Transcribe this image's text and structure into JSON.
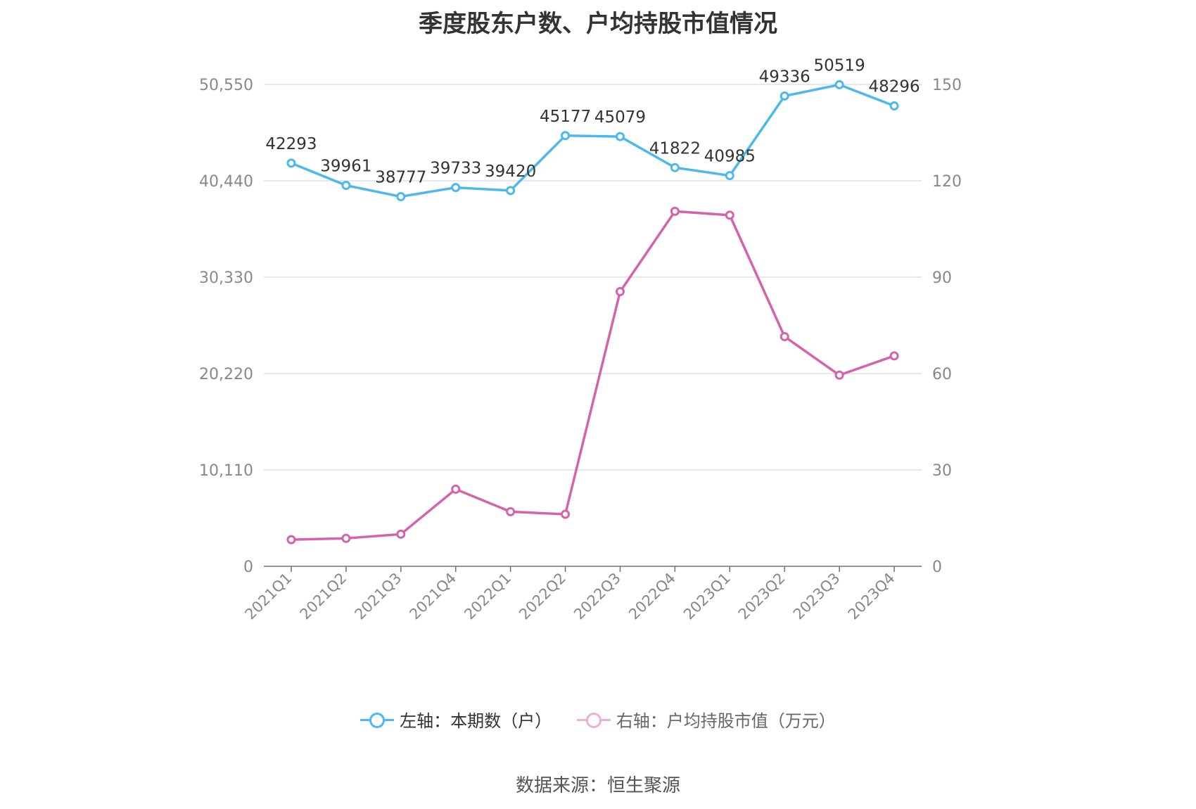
{
  "chart_data": {
    "type": "line",
    "title": "季度股东户数、户均持股市值情况",
    "categories": [
      "2021Q1",
      "2021Q2",
      "2021Q3",
      "2021Q4",
      "2022Q1",
      "2022Q2",
      "2022Q3",
      "2022Q4",
      "2023Q1",
      "2023Q2",
      "2023Q3",
      "2023Q4"
    ],
    "series": [
      {
        "name": "左轴：本期数（户）",
        "axis": "left",
        "color": "#4cb8ee",
        "values": [
          42293,
          39961,
          38777,
          39733,
          39420,
          45177,
          45079,
          41822,
          40985,
          49336,
          50519,
          48296
        ],
        "labels": [
          "42293",
          "39961",
          "38777",
          "39733",
          "39420",
          "45177",
          "45079",
          "41822",
          "40985",
          "49336",
          "50519",
          "48296"
        ]
      },
      {
        "name": "右轴：户均持股市值（万元）",
        "axis": "right",
        "color": "#d563ab",
        "values": [
          8.3,
          8.7,
          10.0,
          24.0,
          17.0,
          16.2,
          85.5,
          110.5,
          109.3,
          71.5,
          59.5,
          65.5
        ]
      }
    ],
    "y_left": {
      "range": [
        0,
        50550
      ],
      "ticks": [
        0,
        10110,
        20220,
        30330,
        40440,
        50550
      ],
      "tick_labels": [
        "0",
        "10,110",
        "20,220",
        "30,330",
        "40,440",
        "50,550"
      ]
    },
    "y_right": {
      "range": [
        0,
        150
      ],
      "ticks": [
        0,
        30,
        60,
        90,
        120,
        150
      ],
      "tick_labels": [
        "0",
        "30",
        "60",
        "90",
        "120",
        "150"
      ]
    },
    "grid": true,
    "legend_position": "bottom"
  },
  "source_text": "数据来源：恒生聚源"
}
